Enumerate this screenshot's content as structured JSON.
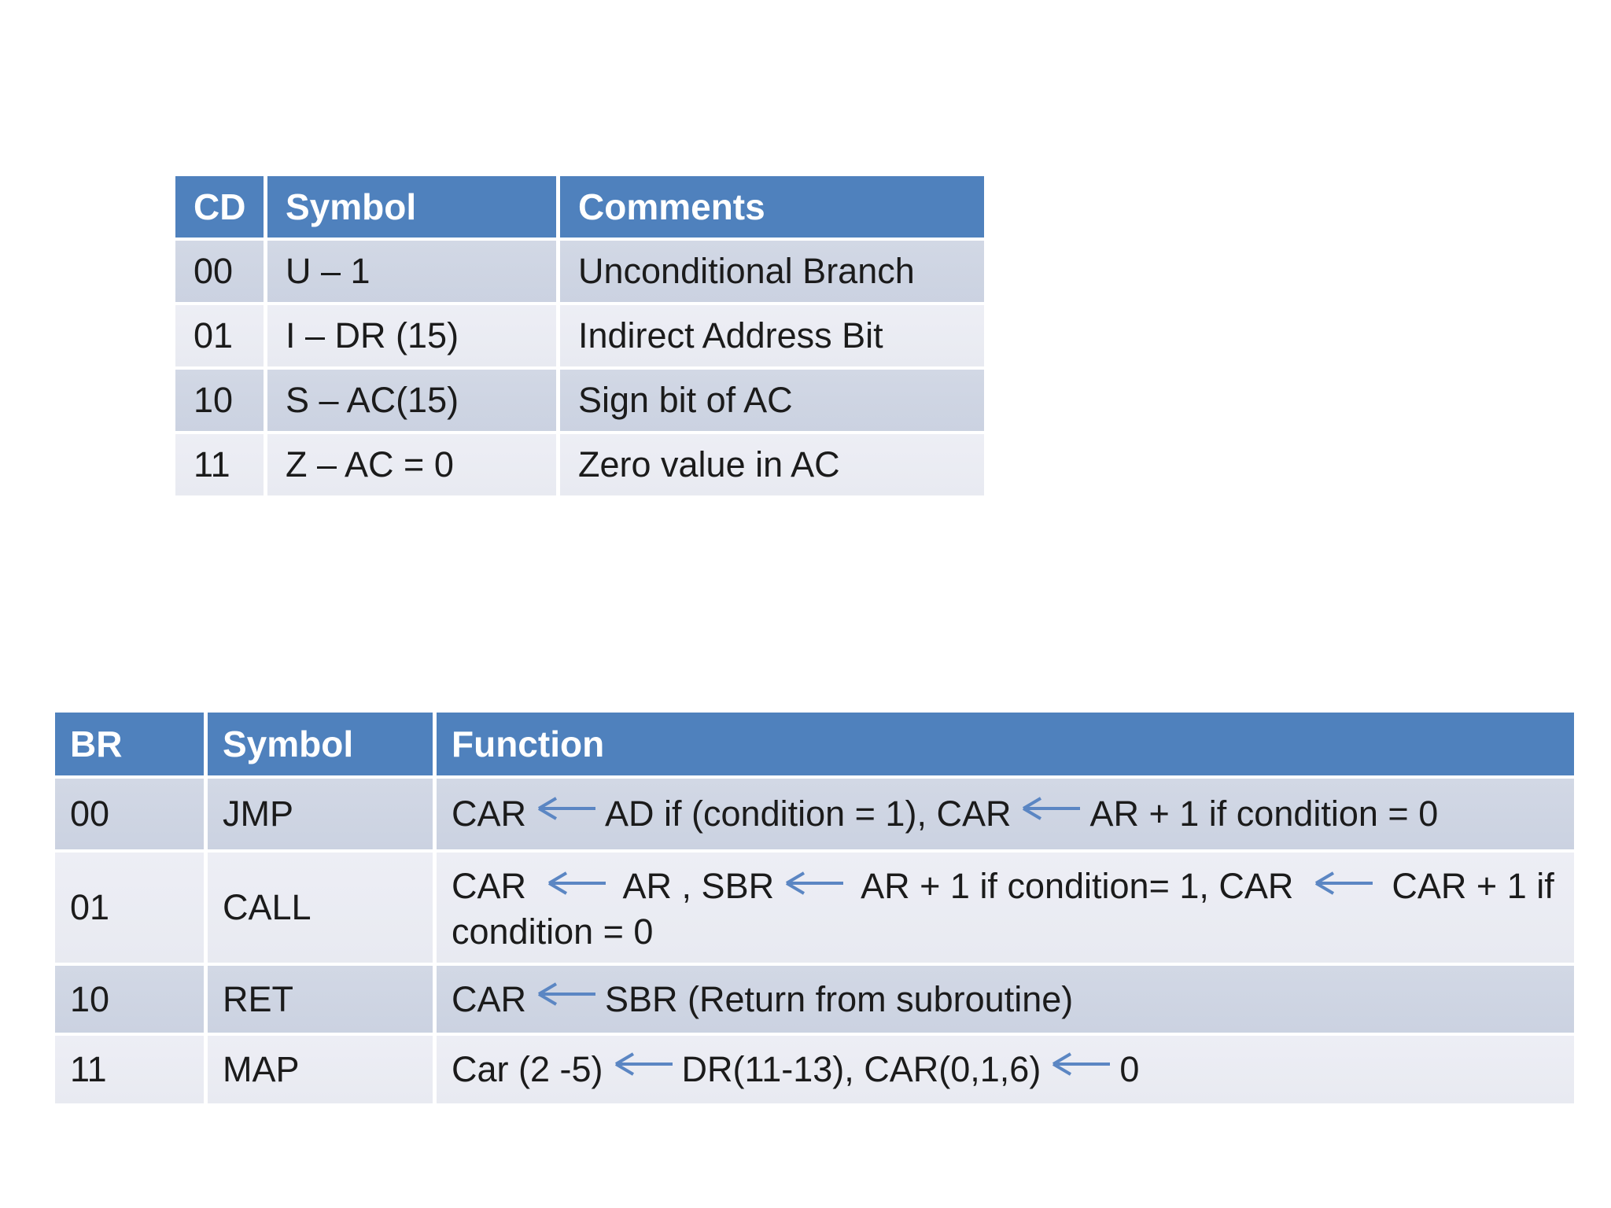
{
  "slide": {
    "background": "#ffffff",
    "description": "Presentation slide with two condition/branch microprogram tables"
  },
  "colors": {
    "header_bg": "#4f81bd",
    "header_text": "#ffffff",
    "row_band_dark": "#cdd4e3",
    "row_band_light": "#e9ebf2",
    "body_text": "#1b1b1b",
    "arrow": "#5b86c3"
  },
  "cd_table": {
    "headers": [
      "CD",
      "Symbol",
      "Comments"
    ],
    "rows": [
      {
        "cd": "00",
        "symbol": "U – 1",
        "comments": "Unconditional Branch"
      },
      {
        "cd": "01",
        "symbol": "I – DR (15)",
        "comments": "Indirect Address Bit"
      },
      {
        "cd": "10",
        "symbol": "S – AC(15)",
        "comments": "Sign bit of AC"
      },
      {
        "cd": "11",
        "symbol": "Z – AC = 0",
        "comments": "Zero value in AC"
      }
    ]
  },
  "br_table": {
    "headers": [
      "BR",
      "Symbol",
      "Function"
    ],
    "rows": [
      {
        "br": "00",
        "symbol": "JMP",
        "function": "CAR← AD if (condition = 1), CAR ← AR + 1 if condition = 0"
      },
      {
        "br": "01",
        "symbol": "CALL",
        "function": "CAR ← AR , SBR← AR + 1 if condition= 1, CAR ← CAR + 1  if condition = 0"
      },
      {
        "br": "10",
        "symbol": "RET",
        "function": "CAR ← SBR (Return from subroutine)"
      },
      {
        "br": "11",
        "symbol": "MAP",
        "function": "Car (2 -5) ← DR(11-13), CAR(0,1,6) ← 0"
      }
    ]
  }
}
